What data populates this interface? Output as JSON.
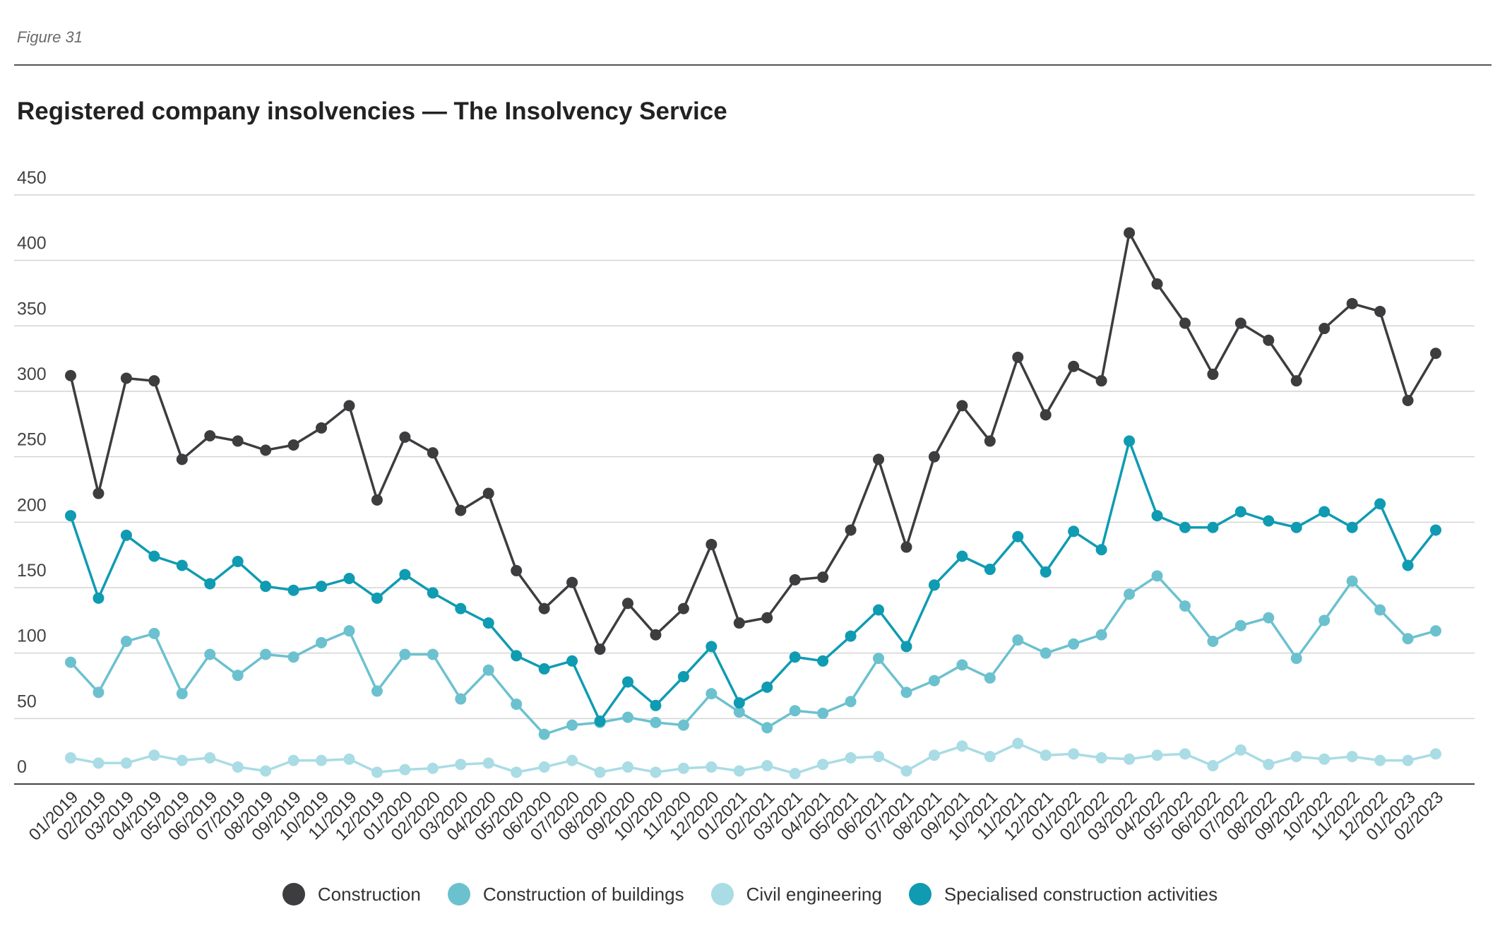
{
  "figure_label": "Figure 31",
  "chart_data": {
    "type": "line",
    "title": "Registered company insolvencies — The Insolvency Service",
    "xlabel": "",
    "ylabel": "",
    "ylim": [
      0,
      450
    ],
    "yticks": [
      0,
      50,
      100,
      150,
      200,
      250,
      300,
      350,
      400,
      450
    ],
    "grid": true,
    "legend_position": "bottom",
    "categories": [
      "01/2019",
      "02/2019",
      "03/2019",
      "04/2019",
      "05/2019",
      "06/2019",
      "07/2019",
      "08/2019",
      "09/2019",
      "10/2019",
      "11/2019",
      "12/2019",
      "01/2020",
      "02/2020",
      "03/2020",
      "04/2020",
      "05/2020",
      "06/2020",
      "07/2020",
      "08/2020",
      "09/2020",
      "10/2020",
      "11/2020",
      "12/2020",
      "01/2021",
      "02/2021",
      "03/2021",
      "04/2021",
      "05/2021",
      "06/2021",
      "07/2021",
      "08/2021",
      "09/2021",
      "10/2021",
      "11/2021",
      "12/2021",
      "01/2022",
      "02/2022",
      "03/2022",
      "04/2022",
      "05/2022",
      "06/2022",
      "07/2022",
      "08/2022",
      "09/2022",
      "10/2022",
      "11/2022",
      "12/2022",
      "01/2023",
      "02/2023"
    ],
    "series": [
      {
        "name": "Construction",
        "color": "#3d3d3f",
        "values": [
          312,
          222,
          310,
          308,
          248,
          266,
          262,
          255,
          259,
          272,
          289,
          217,
          265,
          253,
          209,
          222,
          163,
          134,
          154,
          103,
          138,
          114,
          134,
          183,
          123,
          127,
          156,
          158,
          194,
          248,
          181,
          250,
          289,
          262,
          326,
          282,
          319,
          308,
          421,
          382,
          352,
          313,
          352,
          339,
          308,
          348,
          367,
          361,
          293,
          329
        ]
      },
      {
        "name": "Construction of buildings",
        "color": "#6cc1cf",
        "values": [
          93,
          70,
          109,
          115,
          69,
          99,
          83,
          99,
          97,
          108,
          117,
          71,
          99,
          99,
          65,
          87,
          61,
          38,
          45,
          47,
          51,
          47,
          45,
          69,
          55,
          43,
          56,
          54,
          63,
          96,
          70,
          79,
          91,
          81,
          110,
          100,
          107,
          114,
          145,
          159,
          136,
          109,
          121,
          127,
          96,
          125,
          155,
          133,
          111,
          117
        ]
      },
      {
        "name": "Civil engineering",
        "color": "#a9dce4",
        "values": [
          20,
          16,
          16,
          22,
          18,
          20,
          13,
          10,
          18,
          18,
          19,
          9,
          11,
          12,
          15,
          16,
          9,
          13,
          18,
          9,
          13,
          9,
          12,
          13,
          10,
          14,
          8,
          15,
          20,
          21,
          10,
          22,
          29,
          21,
          31,
          22,
          23,
          20,
          19,
          22,
          23,
          14,
          26,
          15,
          21,
          19,
          21,
          18,
          18,
          23
        ]
      },
      {
        "name": "Specialised construction activities",
        "color": "#0f9bb2",
        "values": [
          205,
          142,
          190,
          174,
          167,
          153,
          170,
          151,
          148,
          151,
          157,
          142,
          160,
          146,
          134,
          123,
          98,
          88,
          94,
          48,
          78,
          60,
          82,
          105,
          62,
          74,
          97,
          94,
          113,
          133,
          105,
          152,
          174,
          164,
          189,
          162,
          193,
          179,
          262,
          205,
          196,
          196,
          208,
          201,
          196,
          208,
          196,
          214,
          167,
          194
        ]
      }
    ]
  }
}
